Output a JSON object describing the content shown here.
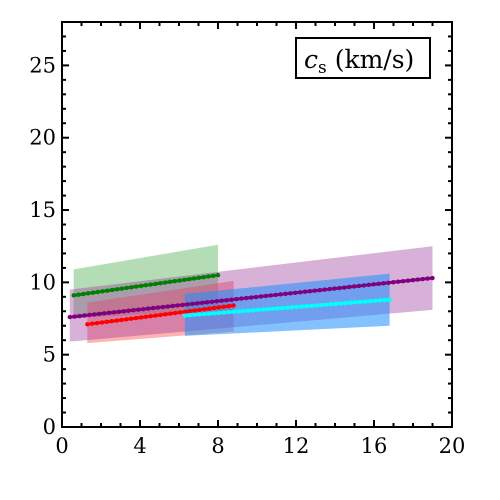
{
  "chart_data": {
    "type": "line",
    "title": "c",
    "title_subscript": "s",
    "title_unit": " (km/s)",
    "xlabel": "",
    "ylabel": "",
    "xlim": [
      0,
      20
    ],
    "ylim": [
      0,
      28
    ],
    "x_ticks": [
      0,
      4,
      8,
      12,
      16,
      20
    ],
    "y_ticks": [
      0,
      5,
      10,
      15,
      20,
      25
    ],
    "grid": false,
    "legend": "none",
    "series": [
      {
        "color": "#008000",
        "band_color": "#4caf50",
        "band_opacity": 0.42,
        "x": [
          0.6,
          8.0
        ],
        "y": [
          9.1,
          10.5
        ],
        "band_lower": [
          7.5,
          8.1
        ],
        "band_upper": [
          10.9,
          12.6
        ]
      },
      {
        "color": "#ff0000",
        "band_color": "#ff6666",
        "band_opacity": 0.5,
        "x": [
          1.3,
          8.8
        ],
        "y": [
          7.1,
          8.4
        ],
        "band_lower": [
          5.8,
          6.6
        ],
        "band_upper": [
          8.6,
          10.1
        ]
      },
      {
        "color": "#800080",
        "band_color": "#993399",
        "band_opacity": 0.38,
        "x": [
          0.4,
          19.0
        ],
        "y": [
          7.6,
          10.3
        ],
        "band_lower": [
          5.9,
          8.1
        ],
        "band_upper": [
          9.5,
          12.5
        ]
      },
      {
        "color": "#00ffff",
        "band_color": "#1e90ff",
        "band_opacity": 0.55,
        "x": [
          6.3,
          16.8
        ],
        "y": [
          7.7,
          8.8
        ],
        "band_lower": [
          6.3,
          7.0
        ],
        "band_upper": [
          9.2,
          10.6
        ]
      }
    ]
  }
}
